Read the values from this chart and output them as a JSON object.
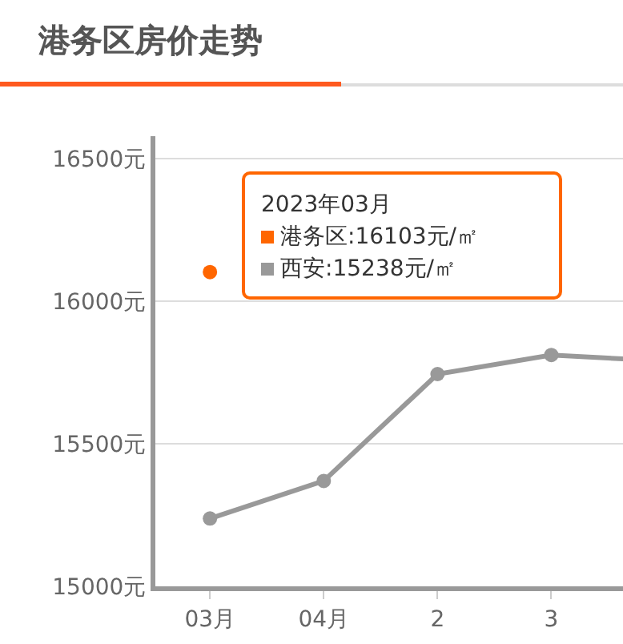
{
  "chart_data": {
    "type": "line",
    "title": "港务区房价走势",
    "categories": [
      "03月",
      "04月",
      "2",
      "3",
      null
    ],
    "series": [
      {
        "name": "港务区",
        "color": "#ff6600",
        "values": [
          16103,
          null,
          null,
          null,
          null
        ]
      },
      {
        "name": "西安",
        "color": "#999999",
        "values": [
          15238,
          15370,
          15745,
          15812,
          15790
        ]
      }
    ],
    "ylim": [
      15000,
      16580
    ],
    "yticks": [
      {
        "value": 15000,
        "label": "15000元"
      },
      {
        "value": 15500,
        "label": "15500元"
      },
      {
        "value": 16000,
        "label": "16000元"
      },
      {
        "value": 16500,
        "label": "16500元"
      }
    ],
    "grid": "y",
    "legend": "top",
    "marker": "circle",
    "line_style": "solid",
    "annotations": [
      "2023年03月",
      ":16103元/㎡",
      ":15238元/㎡"
    ]
  }
}
